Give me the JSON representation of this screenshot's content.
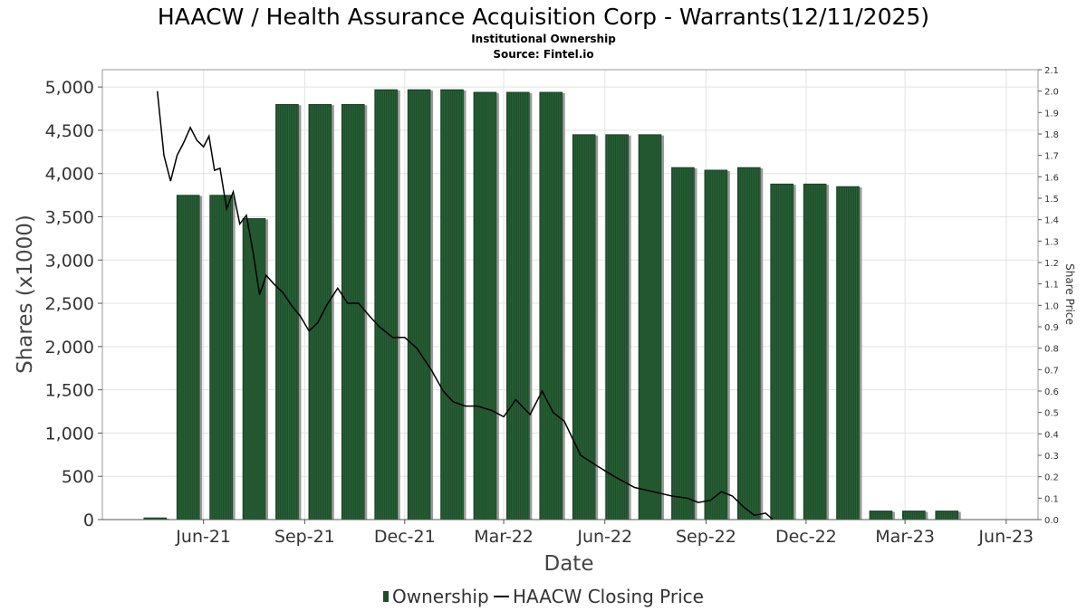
{
  "chart_data": {
    "type": "bar",
    "title": "HAACW / Health Assurance Acquisition Corp - Warrants(12/11/2025)",
    "subtitle": "Institutional Ownership",
    "source": "Source: Fintel.io",
    "xlabel": "Date",
    "ylabel": "Shares (x1000)",
    "y2label": "Share Price",
    "ylim": [
      0,
      5200
    ],
    "y2lim": [
      0,
      2.1
    ],
    "yticks": [
      "0",
      "500",
      "1,000",
      "1,500",
      "2,000",
      "2,500",
      "3,000",
      "3,500",
      "4,000",
      "4,500",
      "5,000"
    ],
    "y2ticks": [
      "0.0",
      "0.1",
      "0.2",
      "0.3",
      "0.4",
      "0.5",
      "0.6",
      "0.7",
      "0.8",
      "0.9",
      "1.0",
      "1.1",
      "1.2",
      "1.3",
      "1.4",
      "1.5",
      "1.6",
      "1.7",
      "1.8",
      "1.9",
      "2.0",
      "2.1"
    ],
    "xlim": [
      "2021-03-01",
      "2023-06-30"
    ],
    "xticks": [
      {
        "label": "Jun-21",
        "date": "2021-06-01"
      },
      {
        "label": "Sep-21",
        "date": "2021-09-01"
      },
      {
        "label": "Dec-21",
        "date": "2021-12-01"
      },
      {
        "label": "Mar-22",
        "date": "2022-03-01"
      },
      {
        "label": "Jun-22",
        "date": "2022-06-01"
      },
      {
        "label": "Sep-22",
        "date": "2022-09-01"
      },
      {
        "label": "Dec-22",
        "date": "2022-12-01"
      },
      {
        "label": "Mar-23",
        "date": "2023-03-01"
      },
      {
        "label": "Jun-23",
        "date": "2023-06-01"
      }
    ],
    "bar_color": "#1e4d2b",
    "line_color": "#000000",
    "grid": true,
    "legend_position": "bottom",
    "series": [
      {
        "name": "Ownership",
        "kind": "bar",
        "x": [
          "2021-04-18",
          "2021-05-18",
          "2021-06-17",
          "2021-07-17",
          "2021-08-16",
          "2021-09-15",
          "2021-10-15",
          "2021-11-14",
          "2021-12-14",
          "2022-01-13",
          "2022-02-12",
          "2022-03-14",
          "2022-04-13",
          "2022-05-13",
          "2022-06-12",
          "2022-07-12",
          "2022-08-11",
          "2022-09-10",
          "2022-10-10",
          "2022-11-09",
          "2022-12-09",
          "2023-01-08",
          "2023-02-07",
          "2023-03-09",
          "2023-04-08",
          "2023-05-08"
        ],
        "values": [
          20,
          3750,
          3750,
          3480,
          4800,
          4800,
          4800,
          4970,
          4970,
          4970,
          4940,
          4940,
          4940,
          4450,
          4450,
          4450,
          4070,
          4040,
          4070,
          3880,
          3880,
          3850,
          100,
          100,
          100,
          0
        ]
      },
      {
        "name": "HAACW Closing Price",
        "kind": "line",
        "axis": "right",
        "x": [
          "2021-04-20",
          "2021-04-26",
          "2021-05-02",
          "2021-05-08",
          "2021-05-14",
          "2021-05-20",
          "2021-05-26",
          "2021-06-01",
          "2021-06-06",
          "2021-06-11",
          "2021-06-16",
          "2021-06-22",
          "2021-06-28",
          "2021-07-04",
          "2021-07-10",
          "2021-07-16",
          "2021-07-22",
          "2021-07-28",
          "2021-08-04",
          "2021-08-12",
          "2021-08-20",
          "2021-08-28",
          "2021-09-05",
          "2021-09-13",
          "2021-09-21",
          "2021-10-01",
          "2021-10-10",
          "2021-10-20",
          "2021-10-30",
          "2021-11-08",
          "2021-11-20",
          "2021-12-01",
          "2021-12-12",
          "2021-12-25",
          "2022-01-05",
          "2022-01-14",
          "2022-01-25",
          "2022-02-05",
          "2022-02-18",
          "2022-03-01",
          "2022-03-12",
          "2022-03-25",
          "2022-04-05",
          "2022-04-15",
          "2022-04-25",
          "2022-05-10",
          "2022-05-25",
          "2022-06-10",
          "2022-06-28",
          "2022-07-15",
          "2022-08-01",
          "2022-08-15",
          "2022-08-25",
          "2022-09-05",
          "2022-09-15",
          "2022-09-25",
          "2022-10-05",
          "2022-10-15",
          "2022-10-25",
          "2022-11-01"
        ],
        "values": [
          2.0,
          1.7,
          1.58,
          1.7,
          1.76,
          1.83,
          1.77,
          1.74,
          1.79,
          1.63,
          1.64,
          1.45,
          1.53,
          1.38,
          1.42,
          1.25,
          1.05,
          1.14,
          1.1,
          1.06,
          1.0,
          0.95,
          0.88,
          0.92,
          1.0,
          1.08,
          1.01,
          1.01,
          0.95,
          0.9,
          0.85,
          0.85,
          0.8,
          0.7,
          0.6,
          0.55,
          0.53,
          0.53,
          0.51,
          0.48,
          0.56,
          0.49,
          0.6,
          0.5,
          0.46,
          0.3,
          0.25,
          0.2,
          0.15,
          0.13,
          0.11,
          0.1,
          0.08,
          0.09,
          0.13,
          0.11,
          0.06,
          0.02,
          0.03,
          0.0
        ]
      }
    ]
  }
}
